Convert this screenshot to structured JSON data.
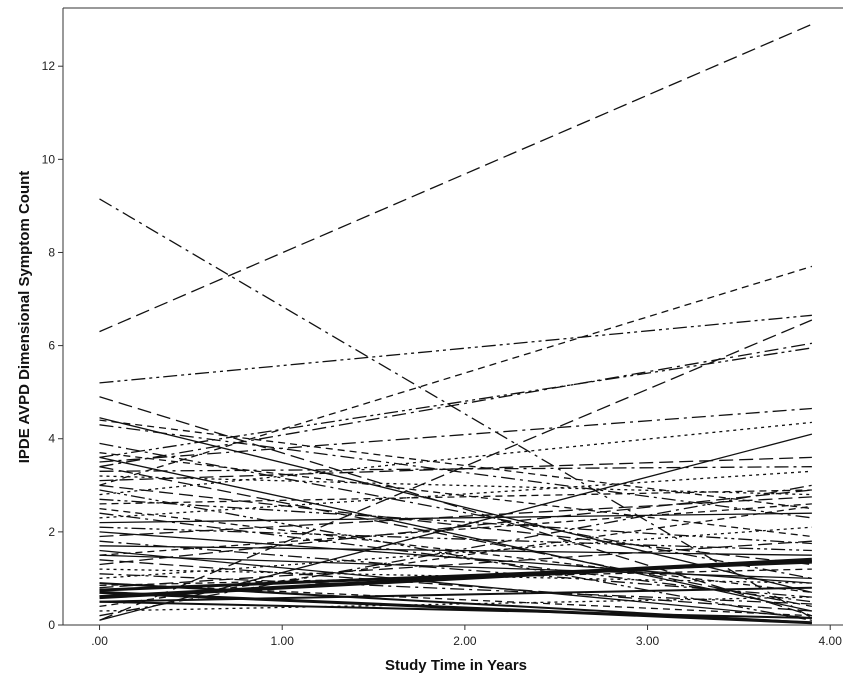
{
  "chart_data": {
    "type": "line",
    "title": "",
    "xlabel": "Study Time in Years",
    "ylabel": "IPDE AVPD Dimensional Symptom Count",
    "xlim": [
      -0.2,
      4.07
    ],
    "ylim": [
      0,
      13.25
    ],
    "x_ticks": [
      0,
      1,
      2,
      3,
      4
    ],
    "x_tick_labels": [
      ".00",
      "1.00",
      "2.00",
      "3.00",
      "4.00"
    ],
    "y_ticks": [
      0,
      2,
      4,
      6,
      8,
      10,
      12
    ],
    "y_tick_labels": [
      "0",
      "2",
      "4",
      "6",
      "8",
      "10",
      "12"
    ],
    "grid": false,
    "legend": "none",
    "line_color": "#111111",
    "series": [
      {
        "x": [
          0,
          3.9
        ],
        "y": [
          6.3,
          12.9
        ],
        "style": "longdash"
      },
      {
        "x": [
          0,
          3.9
        ],
        "y": [
          9.15,
          0.15
        ],
        "style": "dashdot"
      },
      {
        "x": [
          0,
          3.9
        ],
        "y": [
          5.2,
          6.65
        ],
        "style": "dashdotdot"
      },
      {
        "x": [
          0,
          3.9
        ],
        "y": [
          3.0,
          7.7
        ],
        "style": "dash"
      },
      {
        "x": [
          0,
          3.9
        ],
        "y": [
          0.1,
          6.55
        ],
        "style": "longdash"
      },
      {
        "x": [
          0,
          3.9
        ],
        "y": [
          3.4,
          6.05
        ],
        "style": "dashdot"
      },
      {
        "x": [
          0,
          3.9
        ],
        "y": [
          3.6,
          5.95
        ],
        "style": "dashdotdot"
      },
      {
        "x": [
          0,
          3.9
        ],
        "y": [
          4.9,
          0.2
        ],
        "style": "longdash"
      },
      {
        "x": [
          0,
          3.9
        ],
        "y": [
          4.45,
          0.7
        ],
        "style": "solid"
      },
      {
        "x": [
          0,
          3.9
        ],
        "y": [
          4.4,
          2.5
        ],
        "style": "dash"
      },
      {
        "x": [
          0,
          3.9
        ],
        "y": [
          3.5,
          4.65
        ],
        "style": "dashdot"
      },
      {
        "x": [
          0,
          3.9
        ],
        "y": [
          2.8,
          4.35
        ],
        "style": "dot"
      },
      {
        "x": [
          0,
          3.9
        ],
        "y": [
          0.1,
          4.1
        ],
        "style": "solid"
      },
      {
        "x": [
          0,
          3.9
        ],
        "y": [
          3.1,
          3.6
        ],
        "style": "longdash"
      },
      {
        "x": [
          0,
          3.9
        ],
        "y": [
          3.3,
          3.4
        ],
        "style": "dashdot"
      },
      {
        "x": [
          0,
          3.9
        ],
        "y": [
          2.6,
          2.9
        ],
        "style": "dash"
      },
      {
        "x": [
          0,
          3.9
        ],
        "y": [
          3.2,
          2.8
        ],
        "style": "dot"
      },
      {
        "x": [
          0,
          3.9
        ],
        "y": [
          1.9,
          2.75
        ],
        "style": "longdash"
      },
      {
        "x": [
          0,
          3.9
        ],
        "y": [
          4.3,
          2.3
        ],
        "style": "dashdot"
      },
      {
        "x": [
          0,
          3.9
        ],
        "y": [
          1.5,
          2.6
        ],
        "style": "dash"
      },
      {
        "x": [
          0,
          3.9
        ],
        "y": [
          2.2,
          2.4
        ],
        "style": "solid"
      },
      {
        "x": [
          0,
          3.9
        ],
        "y": [
          3.7,
          1.9
        ],
        "style": "dash"
      },
      {
        "x": [
          0,
          3.9
        ],
        "y": [
          2.7,
          1.75
        ],
        "style": "dashdotdot"
      },
      {
        "x": [
          0,
          3.9
        ],
        "y": [
          1.0,
          2.1
        ],
        "style": "dot"
      },
      {
        "x": [
          0,
          3.9
        ],
        "y": [
          0.8,
          1.8
        ],
        "style": "longdash"
      },
      {
        "x": [
          0,
          3.9
        ],
        "y": [
          3.4,
          0.4
        ],
        "style": "longdash"
      },
      {
        "x": [
          0,
          3.9
        ],
        "y": [
          2.4,
          0.5
        ],
        "style": "dashdot"
      },
      {
        "x": [
          0,
          3.9
        ],
        "y": [
          1.7,
          1.5
        ],
        "style": "solid"
      },
      {
        "x": [
          0,
          3.9
        ],
        "y": [
          0.6,
          1.4
        ],
        "style": "solid",
        "width": 4
      },
      {
        "x": [
          0,
          3.9
        ],
        "y": [
          0.75,
          1.35
        ],
        "style": "solid",
        "width": 3
      },
      {
        "x": [
          0,
          3.9
        ],
        "y": [
          0.85,
          1.2
        ],
        "style": "dash"
      },
      {
        "x": [
          0,
          3.9
        ],
        "y": [
          2.0,
          0.9
        ],
        "style": "solid"
      },
      {
        "x": [
          0,
          3.9
        ],
        "y": [
          1.8,
          0.6
        ],
        "style": "dashdot"
      },
      {
        "x": [
          0,
          3.9
        ],
        "y": [
          1.2,
          0.9
        ],
        "style": "dot"
      },
      {
        "x": [
          0,
          3.9
        ],
        "y": [
          0.5,
          0.8
        ],
        "style": "solid",
        "width": 2
      },
      {
        "x": [
          0,
          3.9
        ],
        "y": [
          1.4,
          0.3
        ],
        "style": "longdash"
      },
      {
        "x": [
          0,
          3.9
        ],
        "y": [
          0.9,
          0.2
        ],
        "style": "dash"
      },
      {
        "x": [
          0,
          3.9
        ],
        "y": [
          2.9,
          0.1
        ],
        "style": "dashdotdot"
      },
      {
        "x": [
          0,
          3.9
        ],
        "y": [
          1.6,
          0.15
        ],
        "style": "solid"
      },
      {
        "x": [
          0,
          3.9
        ],
        "y": [
          0.7,
          0.05
        ],
        "style": "solid",
        "width": 3
      },
      {
        "x": [
          0,
          3.9
        ],
        "y": [
          2.5,
          0.7
        ],
        "style": "dash"
      },
      {
        "x": [
          0,
          3.9
        ],
        "y": [
          1.1,
          0.45
        ],
        "style": "dashdot"
      },
      {
        "x": [
          0,
          3.9
        ],
        "y": [
          0.3,
          0.6
        ],
        "style": "dot"
      },
      {
        "x": [
          0,
          3.9
        ],
        "y": [
          3.9,
          1.0
        ],
        "style": "dashdot"
      },
      {
        "x": [
          0,
          3.9
        ],
        "y": [
          1.3,
          2.9
        ],
        "style": "longdash"
      },
      {
        "x": [
          0,
          3.9
        ],
        "y": [
          0.4,
          2.55
        ],
        "style": "dash"
      },
      {
        "x": [
          0,
          3.9
        ],
        "y": [
          2.1,
          1.6
        ],
        "style": "dashdotdot"
      },
      {
        "x": [
          0,
          3.9
        ],
        "y": [
          3.6,
          0.3
        ],
        "style": "solid"
      },
      {
        "x": [
          0,
          3.9
        ],
        "y": [
          0.2,
          3.0
        ],
        "style": "dashdot"
      },
      {
        "x": [
          0,
          3.9
        ],
        "y": [
          1.5,
          1.0
        ],
        "style": "solid"
      },
      {
        "x": [
          0,
          3.9
        ],
        "y": [
          2.3,
          3.3
        ],
        "style": "dot"
      },
      {
        "x": [
          0,
          3.9
        ],
        "y": [
          0.9,
          0.05
        ],
        "style": "solid",
        "width": 2
      },
      {
        "x": [
          0,
          3.9
        ],
        "y": [
          3.0,
          1.3
        ],
        "style": "longdash"
      },
      {
        "x": [
          0,
          3.9
        ],
        "y": [
          0.5,
          0.15
        ],
        "style": "solid",
        "width": 2
      }
    ]
  }
}
